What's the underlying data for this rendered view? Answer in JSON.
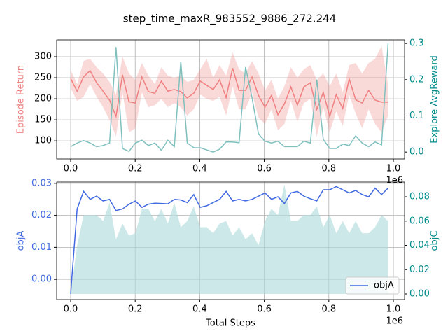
{
  "chart_data": [
    {
      "type": "line",
      "title": "step_time_maxR_983552_9886_272.244",
      "x": [
        0,
        20073,
        40145,
        60218,
        80290,
        100363,
        120435,
        140508,
        160580,
        180653,
        200725,
        220798,
        240870,
        260943,
        281015,
        301088,
        321160,
        341233,
        361305,
        381378,
        401450,
        421523,
        441595,
        461668,
        481740,
        501813,
        521885,
        541958,
        562030,
        582103,
        602175,
        622248,
        642320,
        662393,
        682465,
        702538,
        722610,
        742683,
        762755,
        782828,
        802900,
        822973,
        843045,
        863118,
        883190,
        903263,
        923335,
        943408,
        963480,
        983552
      ],
      "x_offset_label": "1e6",
      "ylabel": "Episode Return",
      "ylabel_color": "#f08080",
      "y2label": "Explore AvgReward",
      "y2label_color": "#008b8b",
      "xlim": [
        -43400,
        1034700
      ],
      "ylim": [
        57,
        340
      ],
      "y2lim": [
        -0.019,
        0.31
      ],
      "xticks": [
        {
          "value": 0,
          "label": "0.0"
        },
        {
          "value": 200000,
          "label": "0.2"
        },
        {
          "value": 400000,
          "label": "0.4"
        },
        {
          "value": 600000,
          "label": "0.6"
        },
        {
          "value": 800000,
          "label": "0.8"
        },
        {
          "value": 1000000,
          "label": "1.0"
        }
      ],
      "yticks": [
        100,
        150,
        200,
        250,
        300
      ],
      "y2ticks": [
        {
          "value": 0,
          "label": "0.0"
        },
        0.1,
        0.2,
        0.3
      ],
      "grid": true,
      "series": [
        {
          "color": "#f08080",
          "values": [
            248,
            218,
            252,
            267,
            238,
            218,
            197,
            158,
            257,
            193,
            190,
            252,
            217,
            213,
            242,
            218,
            222,
            217,
            202,
            213,
            242,
            232,
            222,
            245,
            203,
            273,
            220,
            220,
            252,
            208,
            180,
            208,
            162,
            188,
            228,
            185,
            228,
            238,
            175,
            215,
            158,
            210,
            177,
            247,
            198,
            190,
            220,
            197,
            192,
            192
          ],
          "upper": [
            268,
            235,
            290,
            295,
            275,
            260,
            240,
            210,
            300,
            260,
            245,
            285,
            255,
            235,
            275,
            255,
            250,
            255,
            240,
            245,
            270,
            295,
            250,
            280,
            255,
            310,
            270,
            260,
            290,
            260,
            220,
            245,
            200,
            230,
            275,
            250,
            270,
            280,
            245,
            260,
            230,
            260,
            215,
            280,
            285,
            260,
            285,
            295,
            325,
            235
          ],
          "lower": [
            225,
            195,
            205,
            235,
            205,
            180,
            150,
            110,
            215,
            120,
            130,
            215,
            180,
            185,
            200,
            180,
            190,
            180,
            160,
            175,
            210,
            200,
            195,
            205,
            160,
            230,
            175,
            175,
            215,
            155,
            140,
            175,
            125,
            140,
            195,
            145,
            190,
            200,
            110,
            180,
            120,
            170,
            135,
            210,
            165,
            130,
            175,
            140,
            120,
            160
          ]
        },
        {
          "color": "#7fc0bf",
          "axis": "y2",
          "values": [
            0.015,
            0.025,
            0.032,
            0.025,
            0.015,
            0.018,
            0.025,
            0.29,
            0.01,
            0.002,
            0.025,
            0.033,
            0.018,
            0.025,
            0.005,
            0.033,
            0.015,
            0.25,
            0.025,
            0.012,
            0.012,
            0.006,
            0.0,
            0.008,
            0.028,
            0.028,
            0.026,
            0.235,
            0.15,
            0.05,
            0.03,
            0.025,
            0.03,
            0.015,
            0.015,
            0.015,
            0.03,
            0.025,
            0.2,
            0.035,
            0.01,
            0.01,
            0.022,
            0.018,
            0.045,
            0.025,
            0.015,
            0.028,
            0.02,
            0.3
          ]
        }
      ]
    },
    {
      "type": "line",
      "x": [
        0,
        20073,
        40145,
        60218,
        80290,
        100363,
        120435,
        140508,
        160580,
        180653,
        200725,
        220798,
        240870,
        260943,
        281015,
        301088,
        321160,
        341233,
        361305,
        381378,
        401450,
        421523,
        441595,
        461668,
        481740,
        501813,
        521885,
        541958,
        562030,
        582103,
        602175,
        622248,
        642320,
        662393,
        682465,
        702538,
        722610,
        742683,
        762755,
        782828,
        802900,
        822973,
        843045,
        863118,
        883190,
        903263,
        923335,
        943408,
        963480,
        983552
      ],
      "x_offset_label": "1e6",
      "xlabel": "Total Steps",
      "ylabel": "objA",
      "ylabel_color": "#4169e1",
      "ytick_color": "#4169e1",
      "y2label": "objC",
      "y2label_color": "#008b8b",
      "xlim": [
        -43400,
        1034700
      ],
      "ylim": [
        -0.0063,
        0.0304
      ],
      "y2lim": [
        -0.0046,
        0.0921
      ],
      "xticks": [
        {
          "value": 0,
          "label": "0.0"
        },
        {
          "value": 200000,
          "label": "0.2"
        },
        {
          "value": 400000,
          "label": "0.4"
        },
        {
          "value": 600000,
          "label": "0.6"
        },
        {
          "value": 800000,
          "label": "0.8"
        },
        {
          "value": 1000000,
          "label": "1.0"
        }
      ],
      "yticks": [
        {
          "value": 0,
          "label": "0.00"
        },
        0.01,
        0.02,
        0.03
      ],
      "y2ticks": [
        {
          "value": 0,
          "label": "0.00"
        },
        0.02,
        0.04,
        0.06,
        0.08
      ],
      "grid": true,
      "legend": "lower right",
      "series": [
        {
          "color": "#b0dcdc",
          "axis": "y2",
          "fill": true,
          "values": [
            0.0,
            0.04,
            0.065,
            0.065,
            0.065,
            0.06,
            0.075,
            0.045,
            0.058,
            0.048,
            0.05,
            0.07,
            0.07,
            0.06,
            0.07,
            0.058,
            0.075,
            0.055,
            0.06,
            0.072,
            0.055,
            0.055,
            0.05,
            0.058,
            0.06,
            0.048,
            0.055,
            0.045,
            0.05,
            0.04,
            0.06,
            0.07,
            0.065,
            0.09,
            0.06,
            0.06,
            0.065,
            0.065,
            0.072,
            0.055,
            0.065,
            0.05,
            0.06,
            0.05,
            0.06,
            0.05,
            0.05,
            0.055,
            0.065,
            0.06
          ]
        },
        {
          "name": "objA",
          "color": "#4169e1",
          "values": [
            -0.0045,
            0.022,
            0.0275,
            0.025,
            0.026,
            0.0245,
            0.025,
            0.0215,
            0.022,
            0.0235,
            0.0245,
            0.0225,
            0.0235,
            0.0238,
            0.0237,
            0.0236,
            0.025,
            0.0248,
            0.024,
            0.0265,
            0.0225,
            0.023,
            0.024,
            0.025,
            0.0275,
            0.0245,
            0.025,
            0.0245,
            0.025,
            0.026,
            0.027,
            0.025,
            0.0258,
            0.0237,
            0.027,
            0.0275,
            0.026,
            0.0252,
            0.0245,
            0.028,
            0.028,
            0.029,
            0.028,
            0.027,
            0.0278,
            0.0265,
            0.0258,
            0.0285,
            0.0265,
            0.0285
          ]
        }
      ]
    }
  ]
}
